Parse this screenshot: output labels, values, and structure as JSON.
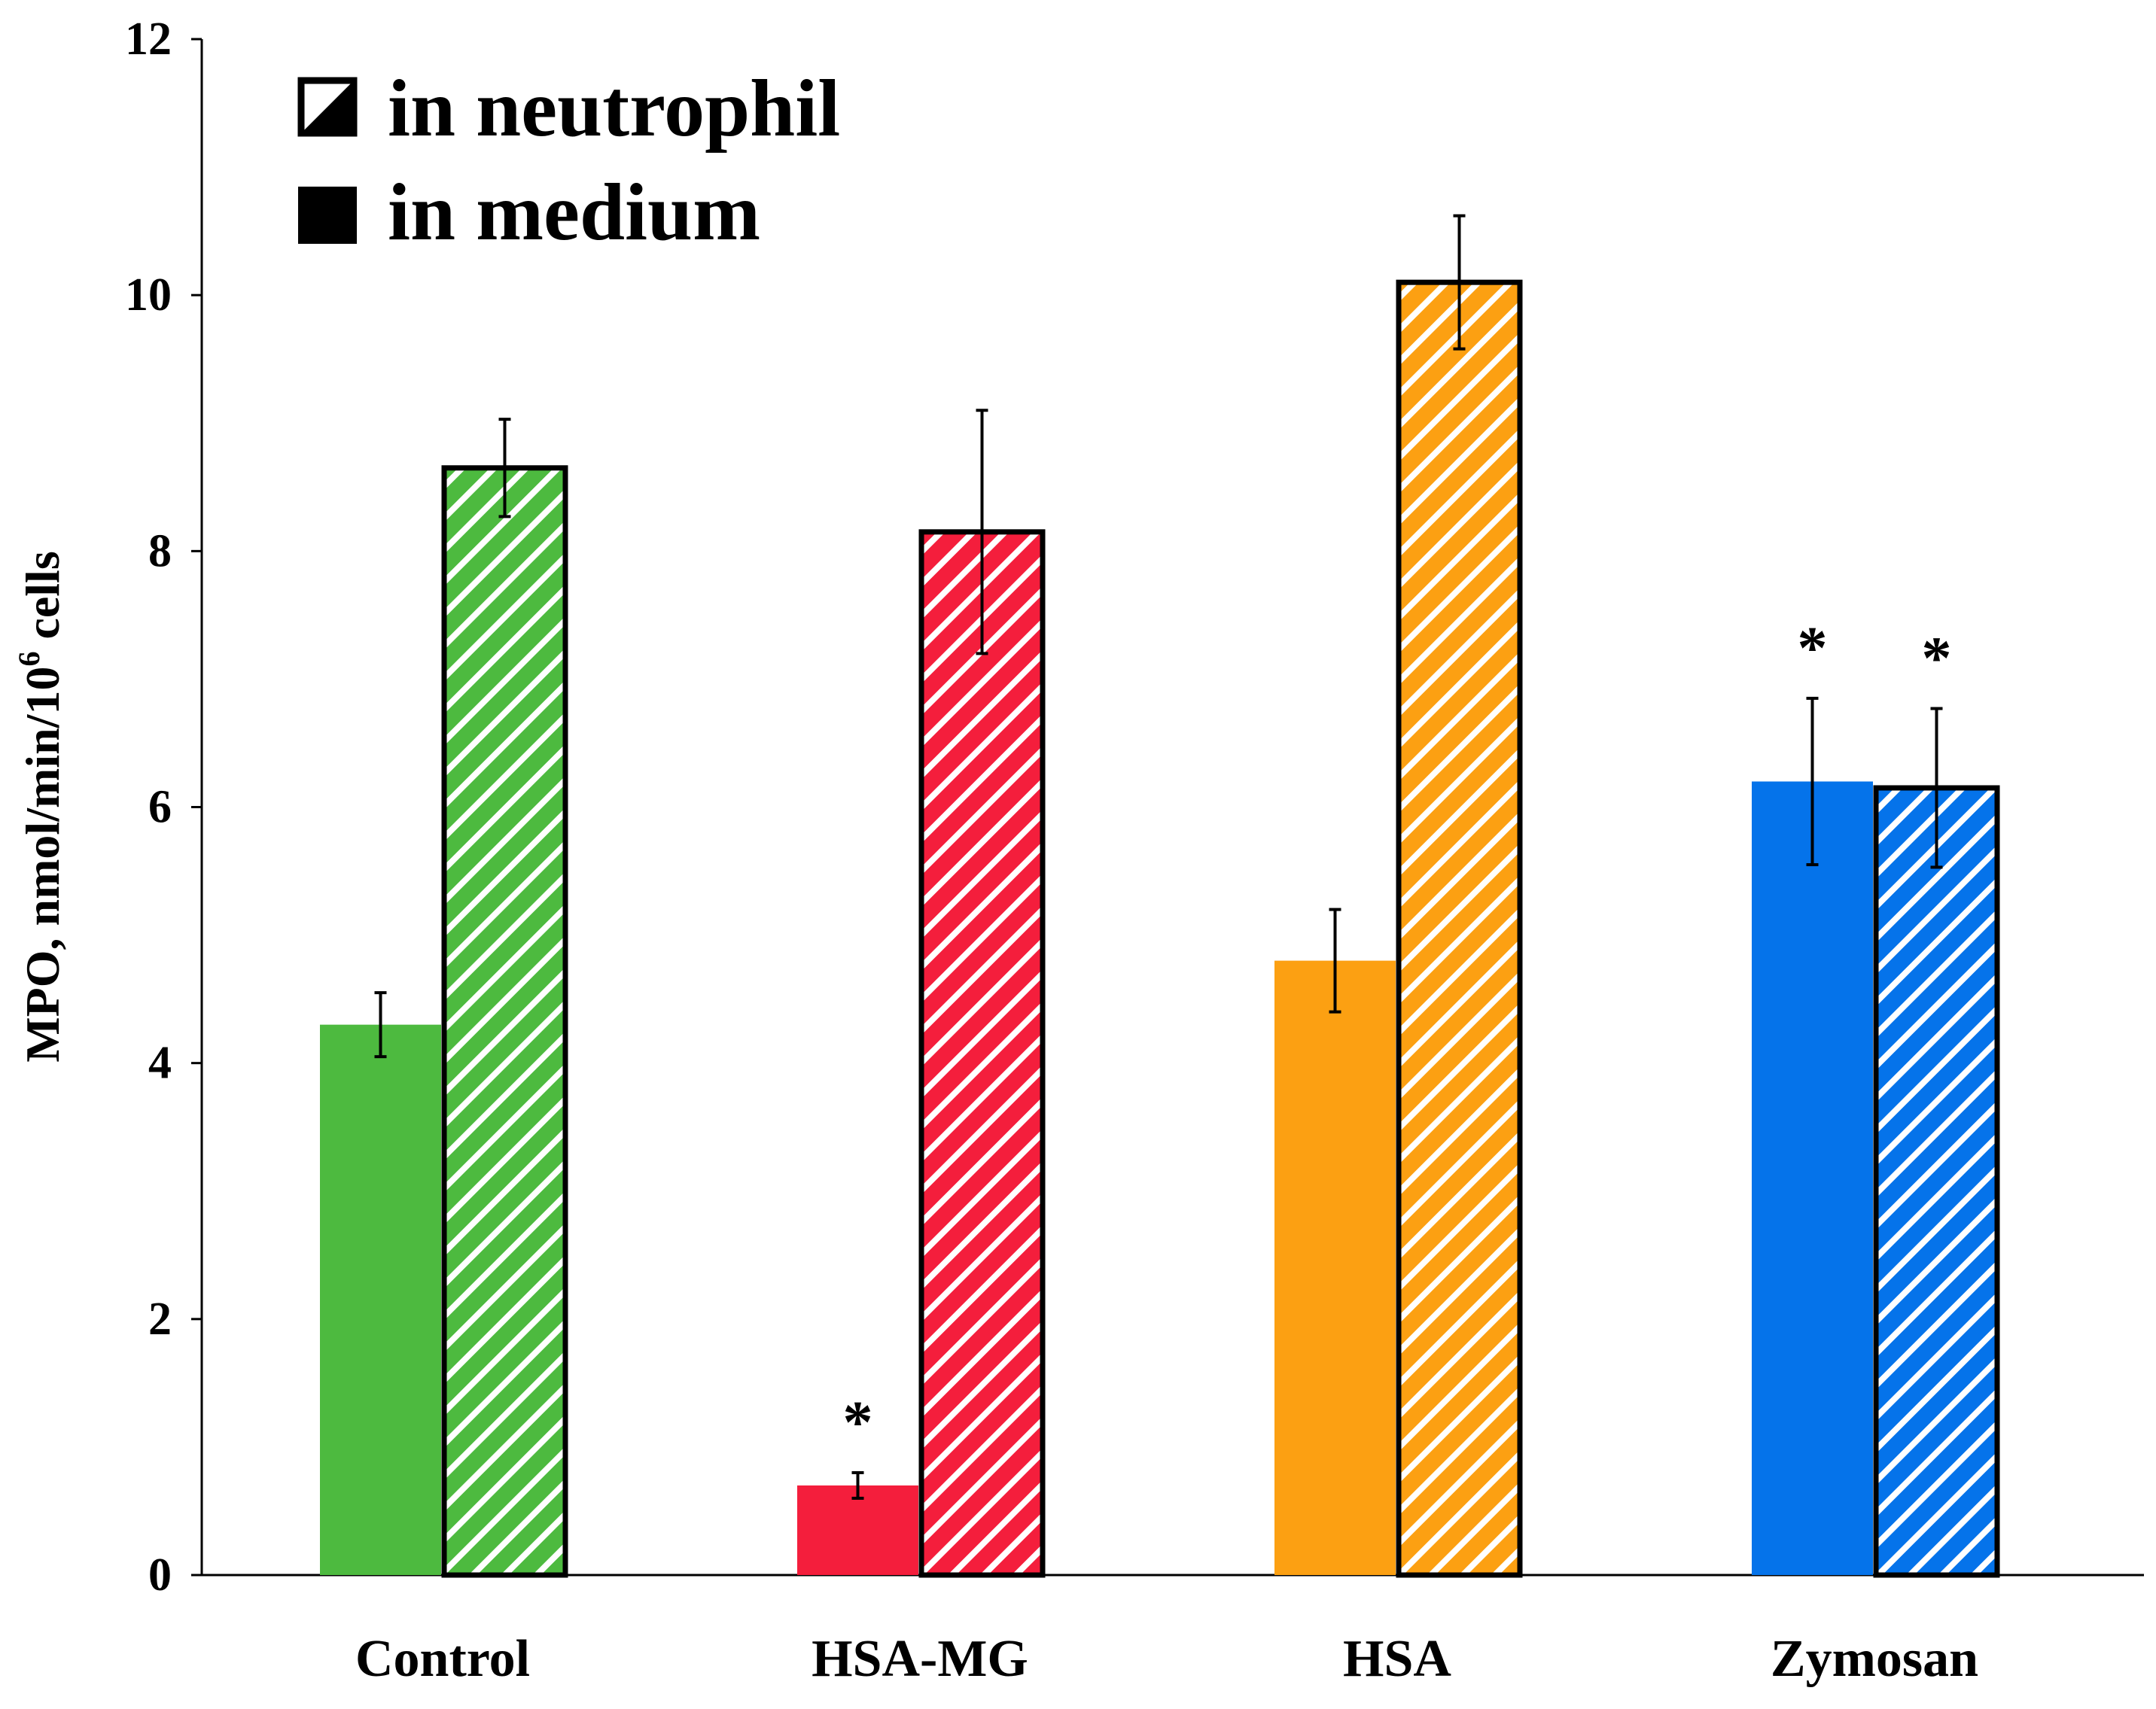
{
  "chart_data": {
    "type": "bar",
    "title": "",
    "xlabel": "",
    "ylabel": "MPO, nmol/min/10",
    "ylabel_sup": "6",
    "ylabel_suffix": " cells",
    "ylim": [
      0,
      12
    ],
    "yticks": [
      "0",
      "2",
      "4",
      "6",
      "8",
      "10",
      "12"
    ],
    "categories": [
      "Control",
      "HSA-MG",
      "HSA",
      "Zymosan"
    ],
    "colors": [
      "#4dba3f",
      "#f41e3c",
      "#fca012",
      "#0573ea"
    ],
    "series": [
      {
        "name": "in medium",
        "pattern": "solid",
        "values": [
          4.3,
          0.7,
          4.8,
          6.2
        ],
        "errors": [
          0.25,
          0.1,
          0.4,
          0.65
        ],
        "significant": [
          false,
          true,
          false,
          true
        ]
      },
      {
        "name": "in neutrophil",
        "pattern": "hatched",
        "values": [
          8.65,
          8.15,
          10.1,
          6.15
        ],
        "errors": [
          0.38,
          0.95,
          0.52,
          0.62
        ],
        "significant": [
          false,
          false,
          false,
          true
        ]
      }
    ],
    "significance_marker": "*",
    "legend": {
      "position": "top-left",
      "entries": [
        {
          "label": "in neutrophil",
          "pattern": "hatched"
        },
        {
          "label": "in medium",
          "pattern": "solid"
        }
      ]
    }
  }
}
